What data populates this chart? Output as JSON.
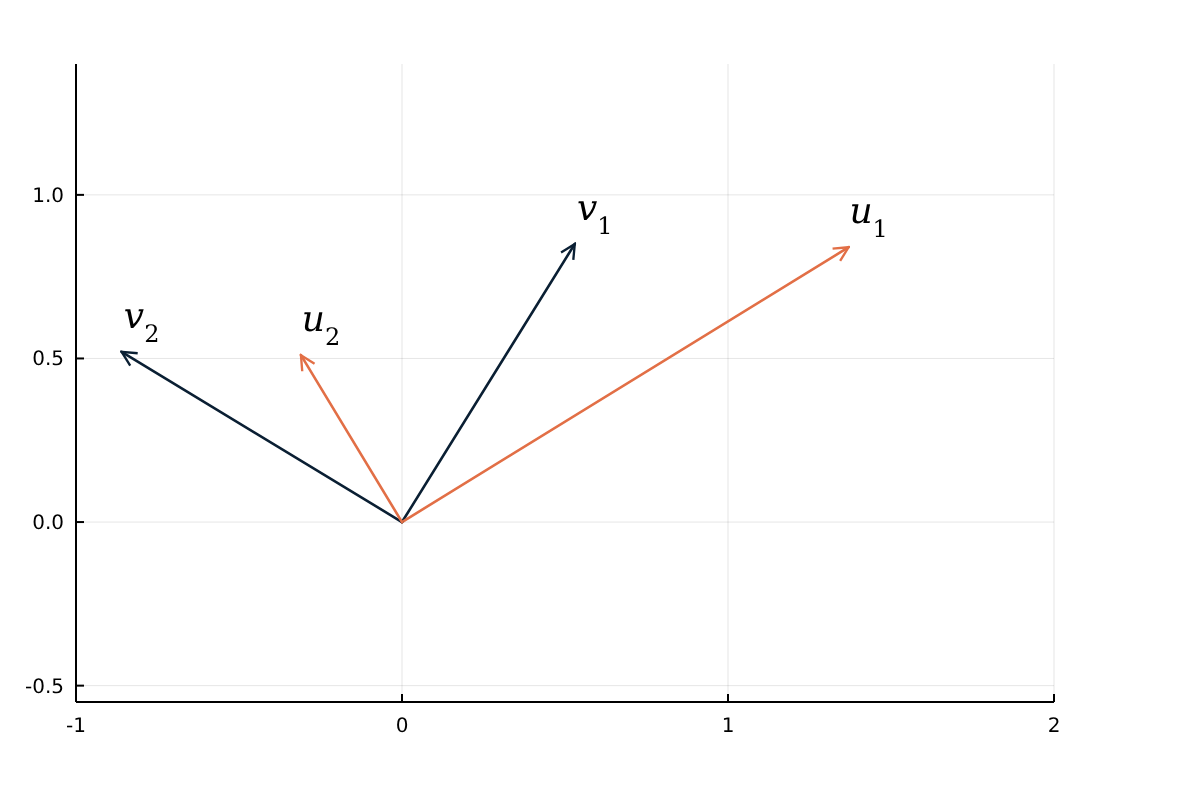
{
  "chart_data": {
    "type": "line",
    "xlim": [
      -1,
      2
    ],
    "ylim": [
      -0.55,
      1.4
    ],
    "xticks": [
      -1,
      0,
      1,
      2
    ],
    "yticks": [
      {
        "value": -0.5,
        "label": "-0.5"
      },
      {
        "value": 0,
        "label": "0.0"
      },
      {
        "value": 0.5,
        "label": "0.5"
      },
      {
        "value": 1,
        "label": "1.0"
      }
    ],
    "grid": true,
    "marker": "none",
    "line_style": "solid",
    "series": [
      {
        "name": "v$_{1}$",
        "color": "#0a1f33",
        "x": [
          0,
          0.53
        ],
        "values": [
          0,
          0.85
        ]
      },
      {
        "name": "u$_{1}$",
        "color": "#e26f46",
        "x": [
          0,
          1.37
        ],
        "values": [
          0,
          0.84
        ]
      },
      {
        "name": "v$_{2}$",
        "color": "#0a1f33",
        "x": [
          0,
          -0.86
        ],
        "values": [
          0,
          0.52
        ]
      },
      {
        "name": "u$_{2}$",
        "color": "#e26f46",
        "x": [
          0,
          -0.31
        ],
        "values": [
          0,
          0.51
        ]
      }
    ]
  }
}
